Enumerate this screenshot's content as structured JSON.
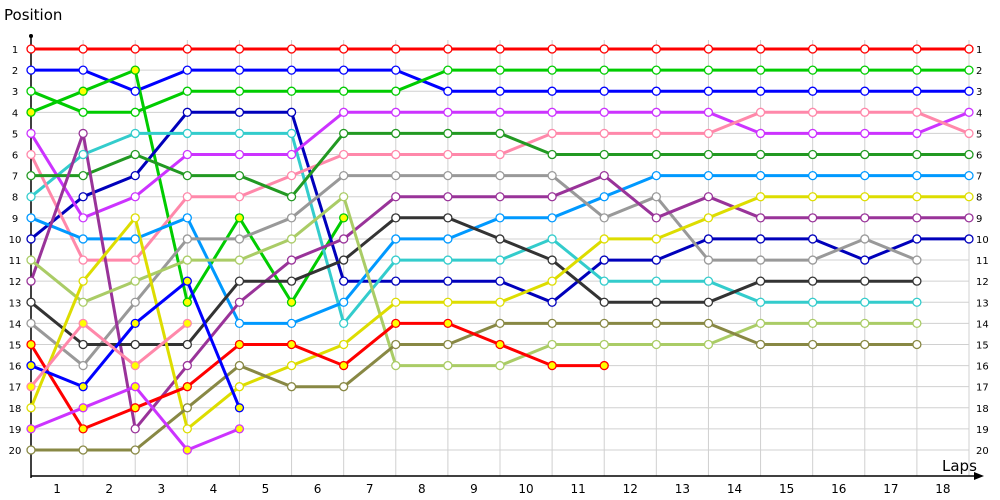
{
  "chart_data": {
    "type": "line",
    "title": "",
    "xlabel": "Laps",
    "ylabel": "Position",
    "x_tick_labels": [
      "1",
      "2",
      "3",
      "4",
      "5",
      "6",
      "7",
      "8",
      "9",
      "10",
      "11",
      "12",
      "13",
      "14",
      "15",
      "16",
      "17",
      "18"
    ],
    "y_tick_labels": [
      "1",
      "2",
      "3",
      "4",
      "5",
      "6",
      "7",
      "8",
      "9",
      "10",
      "11",
      "12",
      "13",
      "14",
      "15",
      "16",
      "17",
      "18",
      "19",
      "20"
    ],
    "ylim": [
      1,
      20
    ],
    "y_inverted": true,
    "grid": true,
    "legend": "none",
    "series": [
      {
        "name": "red",
        "color": "#ff0000",
        "marker": "white",
        "values": [
          1,
          1,
          1,
          1,
          1,
          1,
          1,
          1,
          1,
          1,
          1,
          1,
          1,
          1,
          1,
          1,
          1,
          1,
          1
        ]
      },
      {
        "name": "blue",
        "color": "#0000ff",
        "marker": "white",
        "values": [
          2,
          2,
          3,
          2,
          2,
          2,
          2,
          2,
          3,
          3,
          3,
          3,
          3,
          3,
          3,
          3,
          3,
          3,
          3
        ]
      },
      {
        "name": "green",
        "color": "#00cc00",
        "marker": "white",
        "values": [
          3,
          4,
          4,
          3,
          3,
          3,
          3,
          3,
          2,
          2,
          2,
          2,
          2,
          2,
          2,
          2,
          2,
          2,
          2
        ]
      },
      {
        "name": "green-2",
        "color": "#00cc00",
        "marker": "yellow",
        "values": [
          4,
          3,
          2,
          13,
          9,
          13,
          9
        ]
      },
      {
        "name": "navy",
        "color": "#0000bb",
        "marker": "white",
        "values": [
          10,
          8,
          7,
          4,
          4,
          4,
          12,
          12,
          12,
          12,
          13,
          11,
          11,
          10,
          10,
          10,
          11,
          10,
          10
        ]
      },
      {
        "name": "cyan",
        "color": "#33cccc",
        "marker": "white",
        "values": [
          8,
          6,
          5,
          5,
          5,
          5,
          14,
          11,
          11,
          11,
          10,
          12,
          12,
          12,
          13,
          13,
          13,
          13
        ]
      },
      {
        "name": "violet",
        "color": "#cc33ff",
        "marker": "white",
        "values": [
          5,
          9,
          8,
          6,
          6,
          6,
          4,
          4,
          4,
          4,
          4,
          4,
          4,
          4,
          5,
          5,
          5,
          5,
          4
        ]
      },
      {
        "name": "pink",
        "color": "#ff88aa",
        "marker": "white",
        "values": [
          6,
          11,
          11,
          8,
          8,
          7,
          6,
          6,
          6,
          6,
          5,
          5,
          5,
          5,
          4,
          4,
          4,
          4,
          5
        ]
      },
      {
        "name": "dark-green",
        "color": "#229922",
        "marker": "white",
        "values": [
          7,
          7,
          6,
          7,
          7,
          8,
          5,
          5,
          5,
          5,
          6,
          6,
          6,
          6,
          6,
          6,
          6,
          6,
          6
        ]
      },
      {
        "name": "sky-blue",
        "color": "#0099ff",
        "marker": "white",
        "values": [
          9,
          10,
          10,
          9,
          14,
          14,
          13,
          10,
          10,
          9,
          9,
          8,
          7,
          7,
          7,
          7,
          7,
          7,
          7
        ]
      },
      {
        "name": "grey",
        "color": "#999999",
        "marker": "white",
        "values": [
          14,
          16,
          13,
          10,
          10,
          9,
          7,
          7,
          7,
          7,
          7,
          9,
          8,
          11,
          11,
          11,
          10,
          11
        ]
      },
      {
        "name": "purple",
        "color": "#993399",
        "marker": "white",
        "values": [
          12,
          5,
          19,
          16,
          13,
          11,
          10,
          8,
          8,
          8,
          8,
          7,
          9,
          8,
          9,
          9,
          9,
          9,
          9
        ]
      },
      {
        "name": "black",
        "color": "#333333",
        "marker": "white",
        "values": [
          13,
          15,
          15,
          15,
          12,
          12,
          11,
          9,
          9,
          10,
          11,
          13,
          13,
          13,
          12,
          12,
          12,
          12
        ]
      },
      {
        "name": "light-green",
        "color": "#aacc66",
        "marker": "white",
        "values": [
          11,
          13,
          12,
          11,
          11,
          10,
          8,
          16,
          16,
          16,
          15,
          15,
          15,
          15,
          14,
          14,
          14,
          14
        ]
      },
      {
        "name": "yellow",
        "color": "#dddd00",
        "marker": "white",
        "values": [
          18,
          12,
          9,
          19,
          17,
          16,
          15,
          13,
          13,
          13,
          12,
          10,
          10,
          9,
          8,
          8,
          8,
          8,
          8
        ]
      },
      {
        "name": "olive",
        "color": "#888844",
        "marker": "white",
        "values": [
          20,
          20,
          20,
          18,
          16,
          17,
          17,
          15,
          15,
          14,
          14,
          14,
          14,
          14,
          15,
          15,
          15,
          15
        ]
      },
      {
        "name": "red-2",
        "color": "#ff0000",
        "marker": "yellow",
        "values": [
          15,
          19,
          18,
          17,
          15,
          15,
          16,
          14,
          14,
          15,
          16,
          16
        ]
      },
      {
        "name": "blue-2",
        "color": "#0000ff",
        "marker": "yellow",
        "values": [
          16,
          17,
          14,
          12,
          18
        ]
      },
      {
        "name": "pink-2",
        "color": "#ff88aa",
        "marker": "yellow",
        "values": [
          17,
          14,
          16,
          14
        ]
      },
      {
        "name": "violet-2",
        "color": "#cc33ff",
        "marker": "yellow",
        "values": [
          19,
          18,
          17,
          20,
          19
        ]
      }
    ]
  }
}
